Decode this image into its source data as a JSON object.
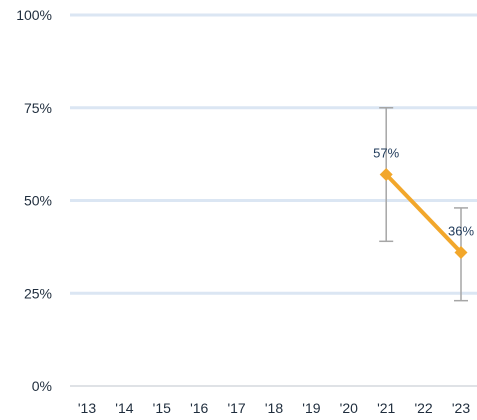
{
  "chart_data": {
    "type": "line",
    "title": "",
    "xlabel": "",
    "ylabel": "",
    "categories": [
      "'13",
      "'14",
      "'15",
      "'16",
      "'17",
      "'18",
      "'19",
      "'20",
      "'21",
      "'22",
      "'23"
    ],
    "ylim": [
      0,
      100
    ],
    "yticks": [
      0,
      25,
      50,
      75,
      100
    ],
    "ytick_labels": [
      "0%",
      "25%",
      "50%",
      "75%",
      "100%"
    ],
    "grid": true,
    "legend": "none",
    "series": [
      {
        "values": [
          null,
          null,
          null,
          null,
          null,
          null,
          null,
          null,
          57,
          null,
          36
        ],
        "data_labels": [
          null,
          null,
          null,
          null,
          null,
          null,
          null,
          null,
          "57%",
          null,
          "36%"
        ],
        "error_low": [
          null,
          null,
          null,
          null,
          null,
          null,
          null,
          null,
          39,
          null,
          23
        ],
        "error_high": [
          null,
          null,
          null,
          null,
          null,
          null,
          null,
          null,
          75,
          null,
          48
        ],
        "color": "#f2a72b",
        "marker": "diamond"
      }
    ],
    "colors": {
      "grid": "#dbe6f3",
      "axis": "#bfc5cc",
      "errorbar": "#a6a6a6"
    }
  }
}
